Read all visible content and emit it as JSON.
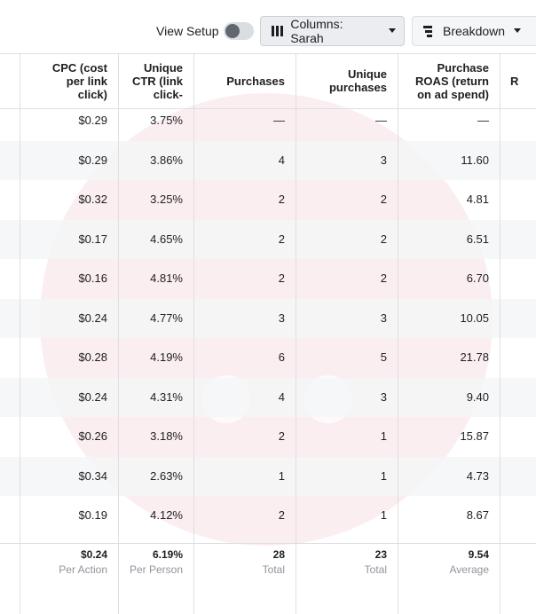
{
  "toolbar": {
    "view_setup": "View Setup",
    "columns": "Columns: Sarah",
    "breakdown": "Breakdown"
  },
  "table": {
    "headers": [
      [
        "CPC (cost",
        "per link",
        "click)"
      ],
      [
        "Unique",
        "CTR (link",
        "click-"
      ],
      [
        "Purchases"
      ],
      [
        "Unique",
        "purchases"
      ],
      [
        "Purchase",
        "ROAS (return",
        "on ad spend)"
      ],
      [
        "R"
      ]
    ],
    "rows": [
      [
        "$0.29",
        "3.75%",
        "—",
        "—",
        "—"
      ],
      [
        "$0.29",
        "3.86%",
        "4",
        "3",
        "11.60"
      ],
      [
        "$0.32",
        "3.25%",
        "2",
        "2",
        "4.81"
      ],
      [
        "$0.17",
        "4.65%",
        "2",
        "2",
        "6.51"
      ],
      [
        "$0.16",
        "4.81%",
        "2",
        "2",
        "6.70"
      ],
      [
        "$0.24",
        "4.77%",
        "3",
        "3",
        "10.05"
      ],
      [
        "$0.28",
        "4.19%",
        "6",
        "5",
        "21.78"
      ],
      [
        "$0.24",
        "4.31%",
        "4",
        "3",
        "9.40"
      ],
      [
        "$0.26",
        "3.18%",
        "2",
        "1",
        "15.87"
      ],
      [
        "$0.34",
        "2.63%",
        "1",
        "1",
        "4.73"
      ],
      [
        "$0.19",
        "4.12%",
        "2",
        "1",
        "8.67"
      ]
    ],
    "footer": [
      {
        "value": "$0.24",
        "label": "Per Action"
      },
      {
        "value": "6.19%",
        "label": "Per Person"
      },
      {
        "value": "28",
        "label": "Total"
      },
      {
        "value": "23",
        "label": "Total"
      },
      {
        "value": "9.54",
        "label": "Average"
      }
    ]
  }
}
